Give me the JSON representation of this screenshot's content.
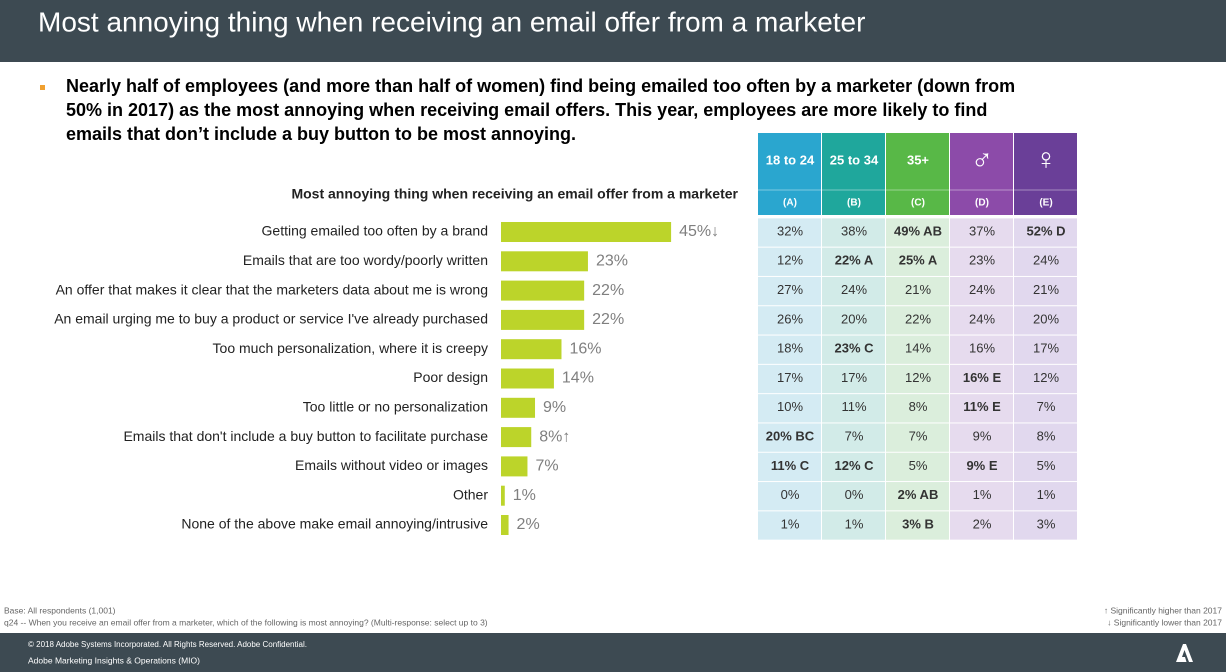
{
  "header": {
    "title": "Most annoying thing when receiving an email offer from a marketer"
  },
  "bullet": {
    "lines": [
      "Nearly half of employees (and more than half of women) find being emailed too often by a marketer (down from",
      "50% in 2017) as the most annoying when receiving email offers. This year, employees are more likely to find",
      "emails that don’t include a buy button to be most annoying."
    ]
  },
  "chart_data": {
    "type": "hbar",
    "title": "Most annoying thing when receiving an email offer from a marketer",
    "categories": [
      "Getting emailed too often by a brand",
      "Emails that are too wordy/poorly written",
      "An offer that makes it clear that the marketers data about me is wrong",
      "An email urging me to buy a product or service I've already purchased",
      "Too much personalization, where it is creepy",
      "Poor design",
      "Too little or no personalization",
      "Emails that don't include a buy button to facilitate purchase",
      "Emails without video or images",
      "Other",
      "None of the above make email annoying/intrusive"
    ],
    "values": [
      45,
      23,
      22,
      22,
      16,
      14,
      9,
      8,
      7,
      1,
      2
    ],
    "value_labels": [
      "45%↓",
      "23%",
      "22%",
      "22%",
      "16%",
      "14%",
      "9%",
      "8%↑",
      "7%",
      "1%",
      "2%"
    ],
    "color": "#bcd42a"
  },
  "table": {
    "columns": [
      "18 to 24",
      "25 to 34",
      "35+",
      "♂",
      "♀"
    ],
    "letters": [
      "(A)",
      "(B)",
      "(C)",
      "(D)",
      "(E)"
    ],
    "colors": [
      "#2aa6cf",
      "#1fa79c",
      "#58b847",
      "#8c4ba9",
      "#6a3f98"
    ],
    "cell_colors": [
      "#d4ebf3",
      "#d2ebe8",
      "#dbeedc",
      "#e6dbee",
      "#e1d8ee"
    ],
    "rows": [
      [
        "32%",
        "38%",
        "49% AB",
        "37%",
        "52% D"
      ],
      [
        "12%",
        "22% A",
        "25% A",
        "23%",
        "24%"
      ],
      [
        "27%",
        "24%",
        "21%",
        "24%",
        "21%"
      ],
      [
        "26%",
        "20%",
        "22%",
        "24%",
        "20%"
      ],
      [
        "18%",
        "23% C",
        "14%",
        "16%",
        "17%"
      ],
      [
        "17%",
        "17%",
        "12%",
        "16% E",
        "12%"
      ],
      [
        "10%",
        "11%",
        "8%",
        "11% E",
        "7%"
      ],
      [
        "20% BC",
        "7%",
        "7%",
        "9%",
        "8%"
      ],
      [
        "11% C",
        "12% C",
        "5%",
        "9% E",
        "5%"
      ],
      [
        "0%",
        "0%",
        "2% AB",
        "1%",
        "1%"
      ],
      [
        "1%",
        "1%",
        "3% B",
        "2%",
        "3%"
      ]
    ]
  },
  "notes": {
    "base": "Base: All respondents (1,001)",
    "question": "q24 -- When you receive an email offer from a marketer, which of the following is most annoying? (Multi-response: select up to 3)",
    "higher": "↑  Significantly higher than 2017",
    "lower": "↓  Significantly lower than 2017"
  },
  "footer": {
    "copyright": "© 2018 Adobe Systems Incorporated.  All Rights Reserved.  Adobe Confidential.",
    "dept": "Adobe Marketing Insights & Operations (MIO)"
  }
}
